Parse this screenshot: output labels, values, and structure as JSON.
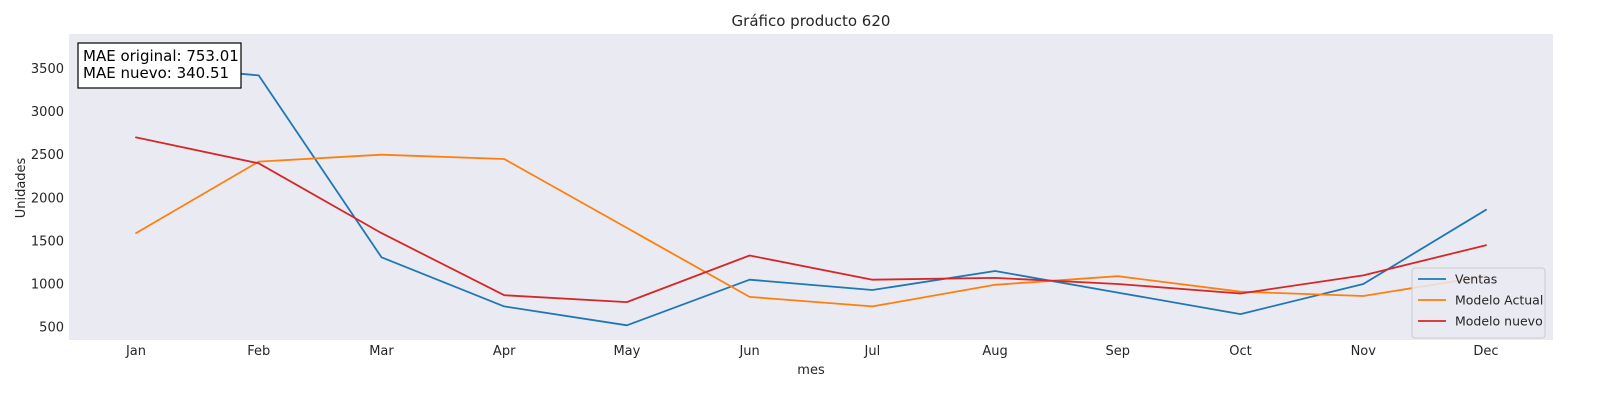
{
  "chart_data": {
    "type": "line",
    "title": "Gráfico producto 620",
    "xlabel": "mes",
    "ylabel": "Unidades",
    "categories": [
      "Jan",
      "Feb",
      "Mar",
      "Apr",
      "May",
      "Jun",
      "Jul",
      "Aug",
      "Sep",
      "Oct",
      "Nov",
      "Dec"
    ],
    "yticks": [
      500,
      1000,
      1500,
      2000,
      2500,
      3000,
      3500
    ],
    "ylim": [
      350,
      3900
    ],
    "grid": false,
    "background_color": "#eaeaf2",
    "legend_position": "bottom-right",
    "annotation": {
      "lines": [
        "MAE original: 753.01",
        "MAE nuevo: 340.51"
      ]
    },
    "series": [
      {
        "name": "Ventas",
        "color": "#1f77b4",
        "values": [
          3550,
          3420,
          1310,
          740,
          520,
          1050,
          930,
          1150,
          900,
          650,
          1000,
          1860
        ]
      },
      {
        "name": "Modelo Actual",
        "color": "#ff7f0e",
        "values": [
          1590,
          2420,
          2500,
          2450,
          1650,
          850,
          740,
          990,
          1090,
          910,
          860,
          1090
        ]
      },
      {
        "name": "Modelo nuevo",
        "color": "#d62728",
        "values": [
          2700,
          2400,
          1590,
          870,
          790,
          1330,
          1050,
          1070,
          1000,
          890,
          1100,
          1450
        ]
      }
    ]
  }
}
